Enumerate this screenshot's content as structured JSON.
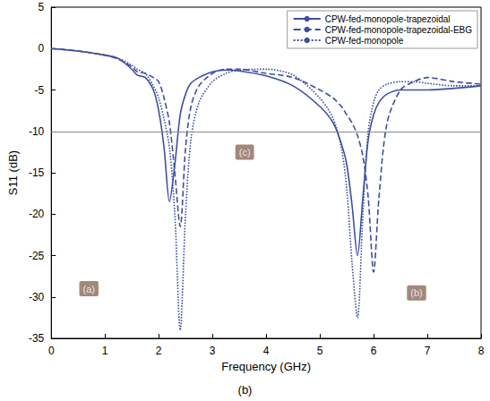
{
  "chart_data": {
    "type": "line",
    "x_label": "Frequency (GHz)",
    "y_label": "S11 (dB)",
    "caption": "(b)",
    "xlim": [
      0,
      8
    ],
    "xticks": [
      0,
      1,
      2,
      3,
      4,
      5,
      6,
      7,
      8
    ],
    "ylim": [
      -35,
      5
    ],
    "yticks": [
      -35,
      -30,
      -25,
      -20,
      -15,
      -10,
      -5,
      0,
      5
    ],
    "grid": false,
    "legend": "top-right",
    "threshold": -10,
    "x": [
      0,
      0.5,
      1,
      1.25,
      1.5,
      1.6,
      1.75,
      1.9,
      2,
      2.1,
      2.2,
      2.3,
      2.4,
      2.5,
      2.6,
      2.75,
      3,
      3.25,
      3.5,
      4,
      4.5,
      5,
      5.25,
      5.4,
      5.5,
      5.6,
      5.7,
      5.8,
      5.9,
      6,
      6.1,
      6.25,
      6.5,
      6.75,
      7,
      7.5,
      8
    ],
    "series": [
      {
        "name": "CPW-fed-monopole-trapezoidal",
        "color": "#3d4f9f",
        "line_style": "solid",
        "values": [
          0,
          -0.3,
          -0.8,
          -1.2,
          -2.5,
          -3.2,
          -3.5,
          -5,
          -7.5,
          -12,
          -18.5,
          -14,
          -8,
          -5.5,
          -4.2,
          -3.5,
          -2.8,
          -2.6,
          -2.7,
          -3.3,
          -4.5,
          -7,
          -9,
          -11.5,
          -14,
          -19,
          -25,
          -18,
          -11,
          -8,
          -6.5,
          -5.5,
          -5,
          -5,
          -5,
          -4.8,
          -4.5
        ]
      },
      {
        "name": "CPW-fed-monopole-trapezoidal-EBG",
        "color": "#3d4f9f",
        "line_style": "dashed",
        "values": [
          0,
          -0.3,
          -0.8,
          -1.3,
          -2.2,
          -2.8,
          -3,
          -3.5,
          -4,
          -6,
          -9,
          -15,
          -21.5,
          -12,
          -7,
          -4.5,
          -3,
          -2.5,
          -2.5,
          -3,
          -3.5,
          -5,
          -6,
          -7,
          -8,
          -9,
          -10.5,
          -13,
          -18,
          -27,
          -18,
          -9,
          -5,
          -4,
          -3.5,
          -4,
          -4.3
        ]
      },
      {
        "name": "CPW-fed-monopole",
        "color": "#3d4f9f",
        "line_style": "dotted",
        "values": [
          0,
          -0.3,
          -0.8,
          -1.2,
          -2,
          -2.5,
          -3,
          -4.5,
          -6,
          -8.5,
          -12,
          -20,
          -34,
          -20,
          -11,
          -6.5,
          -4,
          -3,
          -2.6,
          -2.5,
          -3.2,
          -6,
          -8.5,
          -12,
          -17,
          -26,
          -32.5,
          -20,
          -10,
          -6.5,
          -5,
          -4.3,
          -4,
          -4,
          -4.2,
          -4.5,
          -4.5
        ]
      }
    ],
    "annotations": [
      {
        "text": "(a)",
        "x": 0.7,
        "y": -29
      },
      {
        "text": "(c)",
        "x": 3.6,
        "y": -12.5
      },
      {
        "text": "(b)",
        "x": 6.8,
        "y": -29.5
      }
    ]
  }
}
